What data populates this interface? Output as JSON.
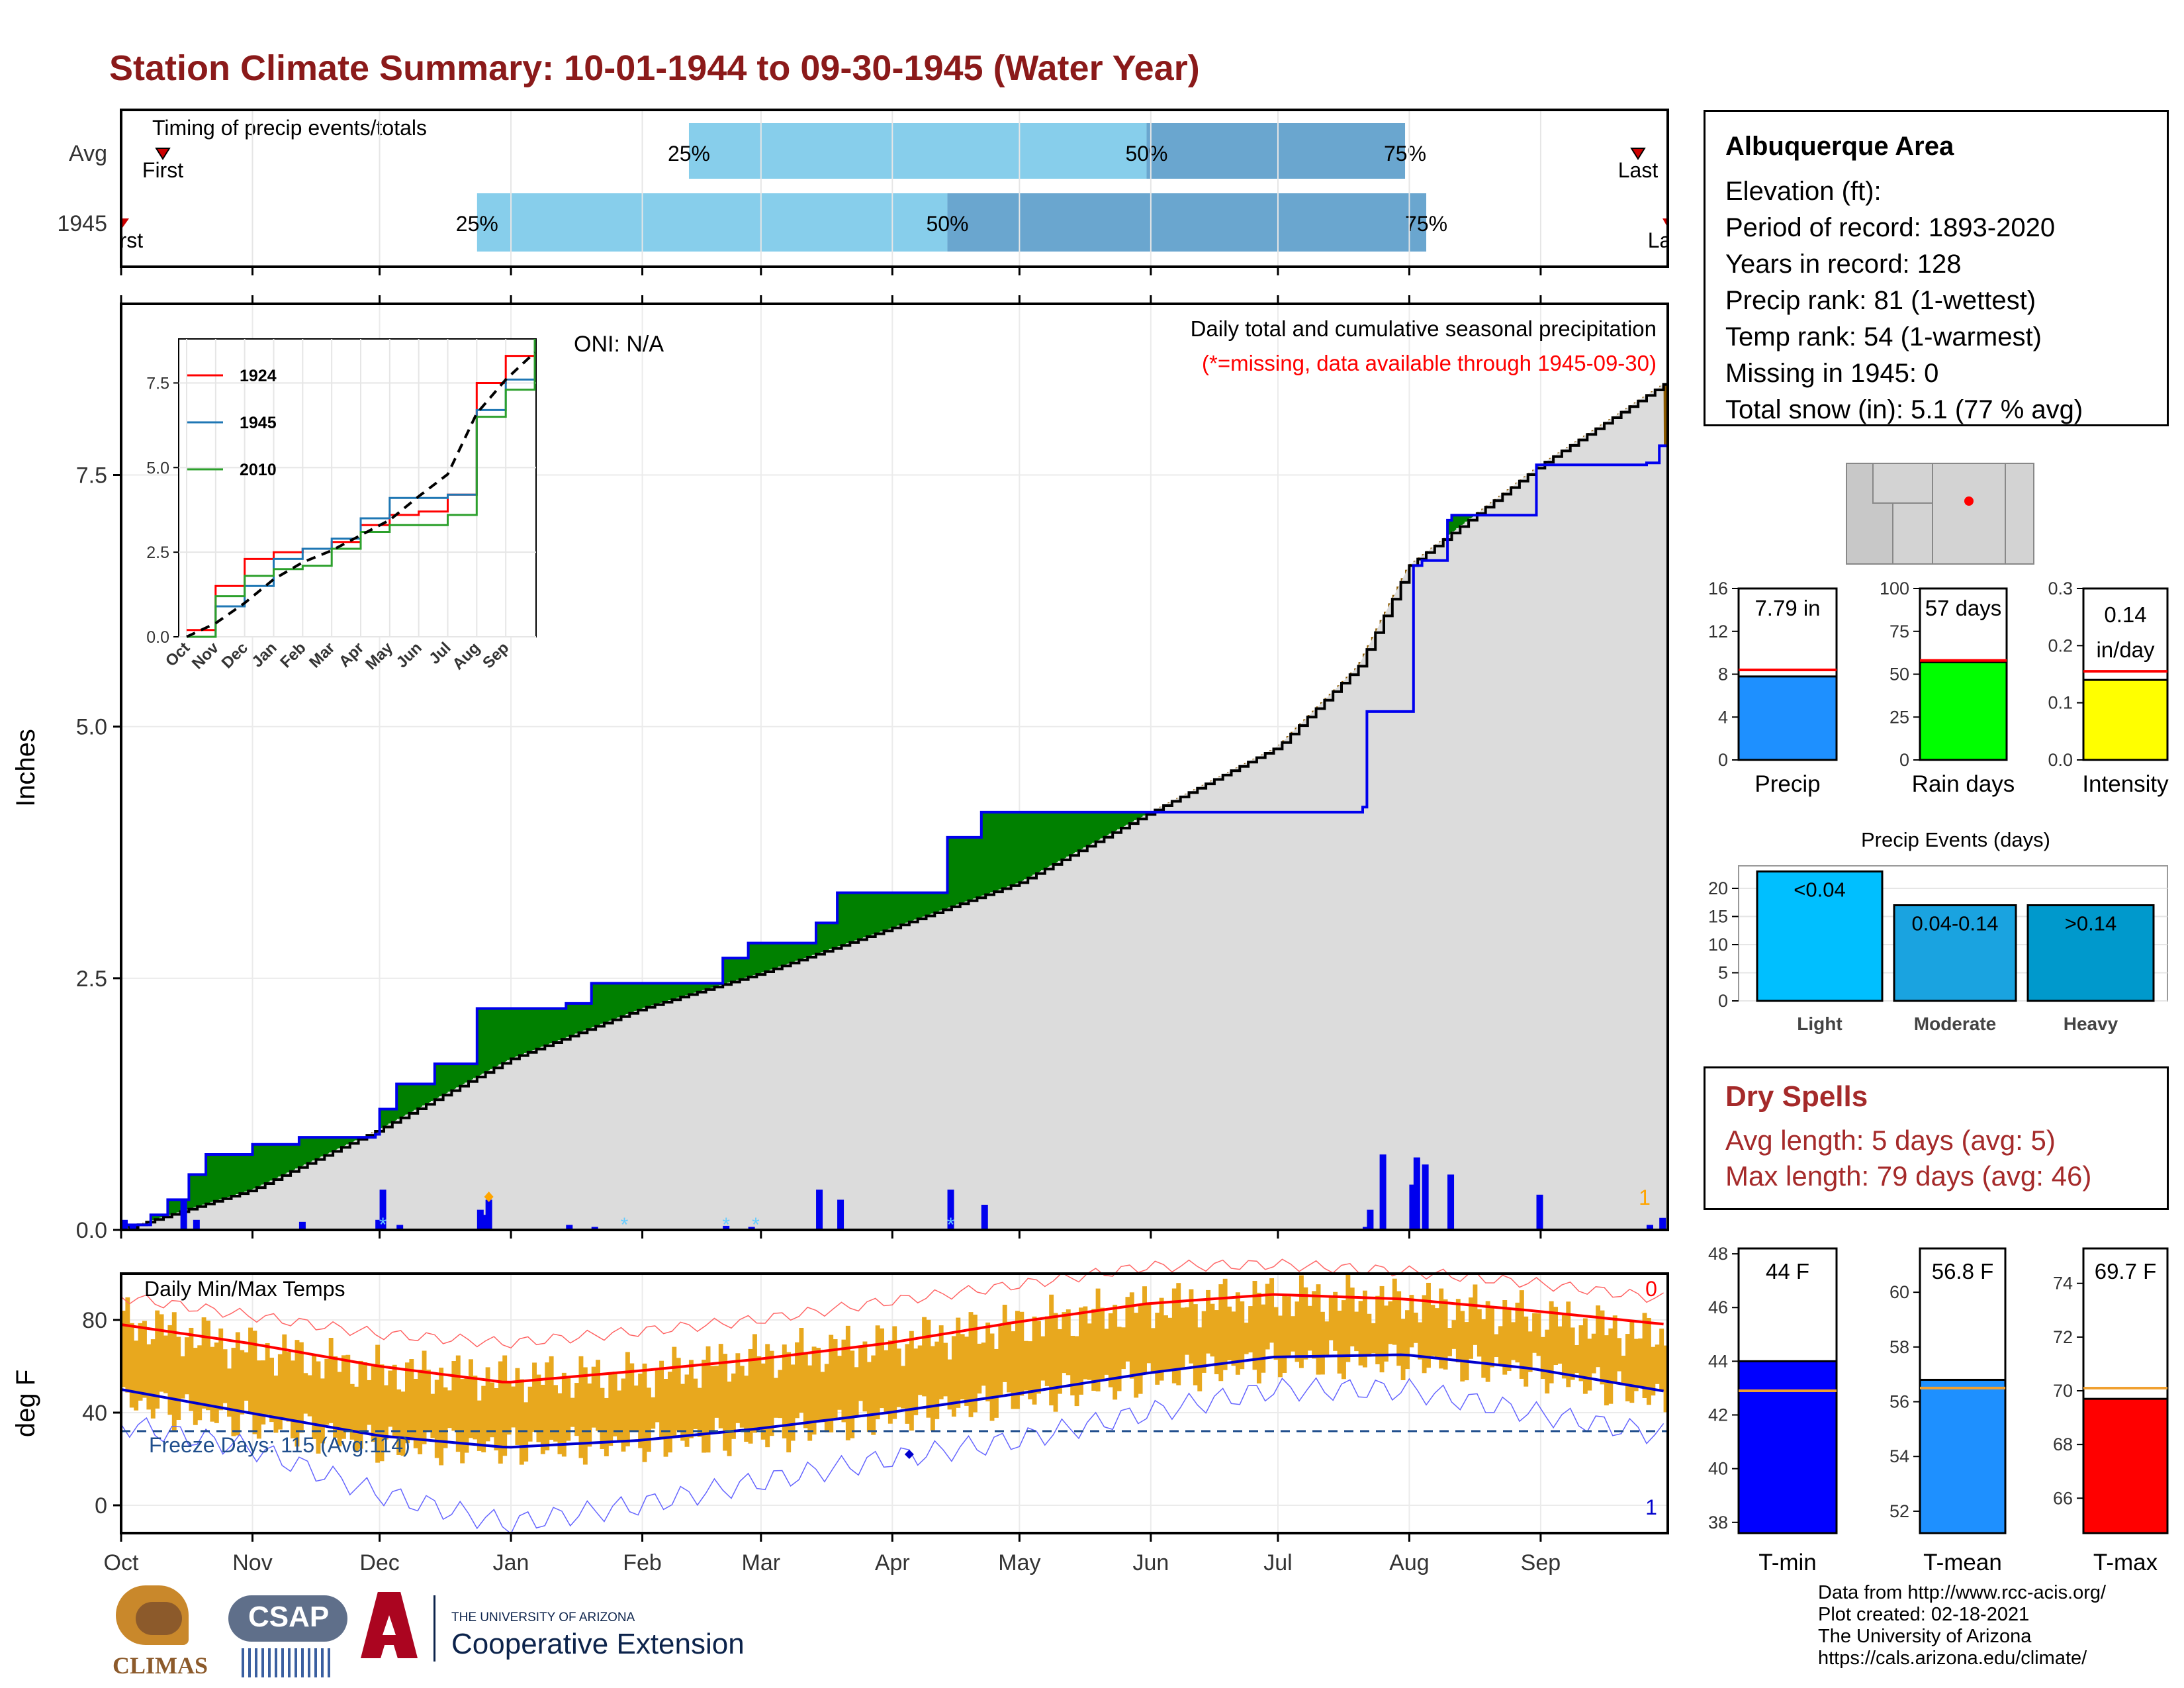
{
  "title": "Station Climate Summary: 10-01-1944 to 09-30-1945 (Water Year)",
  "colors": {
    "title": "#8b1a1a",
    "precip_fill": "#008000",
    "deficit_fill": "#8b5a00",
    "avg_area": "#dcdcdc",
    "daily_bar": "#0000ee",
    "timing_light": "#87ceeb",
    "timing_dark": "#6aa6cf",
    "temp_bar": "#e8a81e",
    "tmax_avg": "#ff0000",
    "tmin_avg": "#0000cc",
    "dry_spells": "#a52a2a"
  },
  "timing": {
    "label": "Timing of precip events/totals",
    "rows": [
      {
        "name": "Avg",
        "first": "First",
        "last": "Last",
        "p25": "25%",
        "p50": "50%",
        "p75": "75%",
        "p25_date": "1945-02-12",
        "p50_date": "1945-05-31",
        "p75_date": "1945-07-31"
      },
      {
        "name": "1945",
        "first": "First",
        "last": "Last",
        "p25": "25%",
        "p50": "50%",
        "p75": "75%",
        "p25_date": "1944-12-24",
        "p50_date": "1945-04-14",
        "p75_date": "1945-08-05"
      }
    ]
  },
  "precip_panel": {
    "ylabel": "Inches",
    "oni": "ONI: N/A",
    "caption": "Daily total and cumulative seasonal precipitation",
    "missing_note": "(*=missing, data available through 1945-09-30)",
    "corner_count": "1",
    "yticks": [
      "0.0",
      "2.5",
      "5.0",
      "7.5"
    ]
  },
  "inset": {
    "yticks": [
      "0.0",
      "2.5",
      "5.0",
      "7.5"
    ],
    "months": [
      "Oct",
      "Nov",
      "Dec",
      "Jan",
      "Feb",
      "Mar",
      "Apr",
      "May",
      "Jun",
      "Jul",
      "Aug",
      "Sep"
    ],
    "legend": [
      "1924",
      "1945",
      "2010"
    ]
  },
  "temp_panel": {
    "ylabel": "deg F",
    "label": "Daily Min/Max Temps",
    "freeze": "Freeze Days: 115 (Avg:114)",
    "top_count": "0",
    "bottom_count": "1",
    "yticks": [
      "0",
      "40",
      "80"
    ]
  },
  "months_axis": [
    "Oct",
    "Nov",
    "Dec",
    "Jan",
    "Feb",
    "Mar",
    "Apr",
    "May",
    "Jun",
    "Jul",
    "Aug",
    "Sep"
  ],
  "info": {
    "title": "Albuquerque Area",
    "lines": [
      "Elevation (ft):",
      "Period of record: 1893-2020",
      "Years in record: 128",
      "Precip rank: 81 (1-wettest)",
      "Temp rank: 54 (1-warmest)",
      "Missing in 1945: 0",
      "Total snow (in): 5.1 (77 % avg)"
    ]
  },
  "mini_bars": [
    {
      "name": "Precip",
      "value_text": "7.79 in",
      "value": 7.79,
      "avg": 8.4,
      "ymax": 16,
      "ticks": [
        "0",
        "4",
        "8",
        "12",
        "16"
      ],
      "color": "#1e90ff"
    },
    {
      "name": "Rain days",
      "value_text": "57 days",
      "value": 57,
      "avg": 58,
      "ymax": 100,
      "ticks": [
        "0",
        "25",
        "50",
        "75",
        "100"
      ],
      "color": "#00ff00"
    },
    {
      "name": "Intensity",
      "value_text": "0.14 in/day",
      "value_line1": "0.14",
      "value_line2": "in/day",
      "value": 0.14,
      "avg": 0.155,
      "ymax": 0.3,
      "ticks": [
        "0.0",
        "0.1",
        "0.2",
        "0.3"
      ],
      "color": "#ffff00"
    }
  ],
  "events": {
    "title": "Precip Events (days)",
    "ticks": [
      "0",
      "5",
      "10",
      "15",
      "20"
    ],
    "bars": [
      {
        "name": "Light",
        "label": "<0.04",
        "value": 23,
        "color": "#00bfff"
      },
      {
        "name": "Moderate",
        "label": "0.04-0.14",
        "value": 17,
        "color": "#1aa3e0"
      },
      {
        "name": "Heavy",
        "label": ">0.14",
        "value": 17,
        "color": "#0099cc"
      }
    ]
  },
  "dry_spells": {
    "title": "Dry Spells",
    "avg": "Avg length: 5 days (avg: 5)",
    "max": "Max length: 79 days (avg: 46)"
  },
  "temp_bars": [
    {
      "name": "T-min",
      "value_text": "44 F",
      "value": 44.0,
      "avg": 42.9,
      "ymin": 37.6,
      "ymax": 48.2,
      "ticks": [
        "38",
        "40",
        "42",
        "44",
        "46",
        "48"
      ],
      "color": "#0000ff"
    },
    {
      "name": "T-mean",
      "value_text": "56.8 F",
      "value": 56.8,
      "avg": 56.5,
      "ymin": 51.2,
      "ymax": 61.6,
      "ticks": [
        "52",
        "54",
        "56",
        "58",
        "60"
      ],
      "color": "#1e90ff"
    },
    {
      "name": "T-max",
      "value_text": "69.7 F",
      "value": 69.7,
      "avg": 70.1,
      "ymin": 64.7,
      "ymax": 75.3,
      "ticks": [
        "66",
        "68",
        "70",
        "72",
        "74"
      ],
      "color": "#ff0000"
    }
  ],
  "credits": [
    "Data from http://www.rcc-acis.org/",
    "Plot created: 02-18-2021",
    "The University of Arizona",
    "https://cals.arizona.edu/climate/"
  ],
  "logos": {
    "climas": "CLIMAS",
    "csap": "CSAP",
    "ua_small": "THE UNIVERSITY OF ARIZONA",
    "ua_big": "Cooperative Extension"
  },
  "chart_data": [
    {
      "type": "area",
      "title": "Daily total and cumulative seasonal precipitation",
      "ylabel": "Inches",
      "ylim": [
        0,
        9.2
      ],
      "x_range": [
        "1944-10-01",
        "1945-09-30"
      ],
      "cumulative_1945": [
        [
          "1944-10-01",
          0.05
        ],
        [
          "1944-10-08",
          0.15
        ],
        [
          "1944-10-12",
          0.3
        ],
        [
          "1944-10-17",
          0.55
        ],
        [
          "1944-10-21",
          0.75
        ],
        [
          "1944-11-01",
          0.85
        ],
        [
          "1944-11-10",
          0.85
        ],
        [
          "1944-11-12",
          0.92
        ],
        [
          "1944-11-30",
          0.95
        ],
        [
          "1944-12-01",
          1.2
        ],
        [
          "1944-12-05",
          1.45
        ],
        [
          "1944-12-14",
          1.65
        ],
        [
          "1944-12-24",
          2.2
        ],
        [
          "1945-01-14",
          2.25
        ],
        [
          "1945-01-20",
          2.45
        ],
        [
          "1945-02-20",
          2.7
        ],
        [
          "1945-02-26",
          2.85
        ],
        [
          "1945-03-14",
          3.05
        ],
        [
          "1945-03-19",
          3.35
        ],
        [
          "1945-04-14",
          3.9
        ],
        [
          "1945-04-22",
          4.15
        ],
        [
          "1945-06-08",
          4.15
        ],
        [
          "1945-07-21",
          4.2
        ],
        [
          "1945-07-22",
          5.15
        ],
        [
          "1945-08-02",
          6.6
        ],
        [
          "1945-08-04",
          6.65
        ],
        [
          "1945-08-10",
          7.05
        ],
        [
          "1945-08-11",
          7.1
        ],
        [
          "1945-08-31",
          7.6
        ],
        [
          "1945-09-26",
          7.62
        ],
        [
          "1945-09-29",
          7.79
        ]
      ],
      "average_cumulative": [
        [
          "1944-10-01",
          0.0
        ],
        [
          "1944-11-01",
          0.4
        ],
        [
          "1944-12-01",
          1.0
        ],
        [
          "1945-01-01",
          1.7
        ],
        [
          "1945-02-01",
          2.2
        ],
        [
          "1945-03-01",
          2.55
        ],
        [
          "1945-04-01",
          3.0
        ],
        [
          "1945-05-01",
          3.45
        ],
        [
          "1945-06-01",
          4.15
        ],
        [
          "1945-07-01",
          4.8
        ],
        [
          "1945-07-20",
          5.6
        ],
        [
          "1945-08-01",
          6.6
        ],
        [
          "1945-09-01",
          7.6
        ],
        [
          "1945-09-30",
          8.4
        ]
      ],
      "daily_precip": [
        [
          "1944-10-01",
          0.1
        ],
        [
          "1944-10-03",
          0.05
        ],
        [
          "1944-10-15",
          0.3
        ],
        [
          "1944-10-18",
          0.1
        ],
        [
          "1944-11-12",
          0.08
        ],
        [
          "1944-11-30",
          0.1
        ],
        [
          "1944-12-01",
          0.4
        ],
        [
          "1944-12-05",
          0.05
        ],
        [
          "1944-12-24",
          0.2
        ],
        [
          "1944-12-25",
          0.15
        ],
        [
          "1944-12-26",
          0.3
        ],
        [
          "1945-01-14",
          0.05
        ],
        [
          "1945-01-20",
          0.03
        ],
        [
          "1945-02-20",
          0.04
        ],
        [
          "1945-02-26",
          0.03
        ],
        [
          "1945-03-14",
          0.4
        ],
        [
          "1945-03-19",
          0.3
        ],
        [
          "1945-04-14",
          0.4
        ],
        [
          "1945-04-22",
          0.25
        ],
        [
          "1945-07-21",
          0.03
        ],
        [
          "1945-07-22",
          0.2
        ],
        [
          "1945-07-25",
          0.75
        ],
        [
          "1945-08-01",
          0.45
        ],
        [
          "1945-08-02",
          0.72
        ],
        [
          "1945-08-04",
          0.65
        ],
        [
          "1945-08-10",
          0.55
        ],
        [
          "1945-08-31",
          0.35
        ],
        [
          "1945-09-26",
          0.05
        ],
        [
          "1945-09-29",
          0.12
        ]
      ],
      "snow_markers": [
        "1944-12-01",
        "1945-01-27",
        "1945-02-20",
        "1945-02-27",
        "1945-04-14"
      ]
    },
    {
      "type": "line",
      "title": "Inset cumulative precipitation",
      "ylim": [
        0,
        8.8
      ],
      "series": [
        {
          "name": "1924",
          "color": "#ff0000",
          "values": [
            0.2,
            1.5,
            2.3,
            2.5,
            2.6,
            2.8,
            3.3,
            3.6,
            3.7,
            4.2,
            7.5,
            8.3,
            8.5
          ]
        },
        {
          "name": "1945",
          "color": "#1f77b4",
          "values": [
            0.0,
            0.9,
            1.5,
            2.3,
            2.6,
            2.9,
            3.5,
            4.1,
            4.1,
            4.2,
            6.7,
            7.6,
            7.8
          ]
        },
        {
          "name": "2010",
          "color": "#2ca02c",
          "values": [
            0.0,
            1.2,
            1.8,
            2.0,
            2.1,
            2.6,
            3.1,
            3.3,
            3.3,
            3.6,
            6.5,
            7.3,
            8.8
          ]
        }
      ],
      "average": [
        0.0,
        0.4,
        1.0,
        1.7,
        2.2,
        2.55,
        3.0,
        3.45,
        4.15,
        4.8,
        6.6,
        7.6,
        8.4
      ]
    },
    {
      "type": "line",
      "title": "Daily Min/Max Temps",
      "ylabel": "deg F",
      "ylim": [
        -12,
        100
      ],
      "freeze_line": 32,
      "avg_tmax": [
        [
          0,
          78
        ],
        [
          30,
          70
        ],
        [
          61,
          60
        ],
        [
          91,
          53
        ],
        [
          122,
          58
        ],
        [
          150,
          63
        ],
        [
          181,
          70
        ],
        [
          211,
          79
        ],
        [
          242,
          87
        ],
        [
          272,
          91
        ],
        [
          303,
          89
        ],
        [
          333,
          84
        ],
        [
          365,
          78
        ]
      ],
      "avg_tmin": [
        [
          0,
          50
        ],
        [
          30,
          40
        ],
        [
          61,
          30
        ],
        [
          91,
          25
        ],
        [
          122,
          28
        ],
        [
          150,
          33
        ],
        [
          181,
          40
        ],
        [
          211,
          48
        ],
        [
          242,
          57
        ],
        [
          272,
          64
        ],
        [
          303,
          65
        ],
        [
          333,
          59
        ],
        [
          365,
          49
        ]
      ],
      "record_tmax": [
        [
          0,
          90
        ],
        [
          30,
          82
        ],
        [
          61,
          74
        ],
        [
          91,
          70
        ],
        [
          122,
          75
        ],
        [
          150,
          80
        ],
        [
          181,
          88
        ],
        [
          211,
          95
        ],
        [
          242,
          103
        ],
        [
          272,
          104
        ],
        [
          303,
          101
        ],
        [
          333,
          96
        ],
        [
          365,
          89
        ]
      ],
      "record_tmin": [
        [
          0,
          35
        ],
        [
          30,
          25
        ],
        [
          61,
          5
        ],
        [
          91,
          -8
        ],
        [
          122,
          0
        ],
        [
          150,
          10
        ],
        [
          181,
          20
        ],
        [
          211,
          28
        ],
        [
          242,
          40
        ],
        [
          272,
          50
        ],
        [
          303,
          50
        ],
        [
          333,
          40
        ],
        [
          365,
          30
        ]
      ],
      "daily_band_1945": [
        [
          0,
          80,
          45
        ],
        [
          30,
          68,
          36
        ],
        [
          61,
          58,
          26
        ],
        [
          91,
          55,
          25
        ],
        [
          122,
          56,
          27
        ],
        [
          150,
          64,
          30
        ],
        [
          181,
          70,
          38
        ],
        [
          211,
          78,
          46
        ],
        [
          242,
          86,
          55
        ],
        [
          272,
          90,
          62
        ],
        [
          303,
          88,
          63
        ],
        [
          333,
          82,
          58
        ],
        [
          365,
          72,
          45
        ]
      ]
    }
  ]
}
